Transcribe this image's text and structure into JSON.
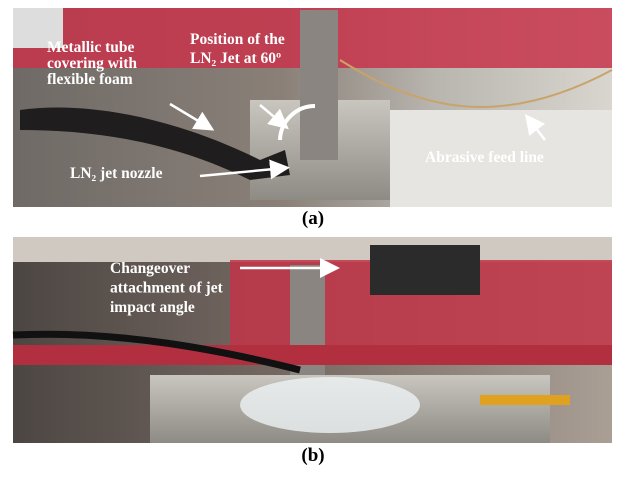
{
  "panels": [
    {
      "caption": "(a)",
      "annotations": [
        {
          "lines": [
            "Metallic tube",
            "covering with",
            "flexible foam"
          ]
        },
        {
          "lines": [
            "Position  of  the",
            "LN₂ Jet at 60º"
          ]
        },
        {
          "lines": [
            "LN₂ jet nozzle"
          ]
        },
        {
          "lines": [
            "Abrasive feed line"
          ]
        }
      ]
    },
    {
      "caption": "(b)",
      "annotations": [
        {
          "lines": [
            "Changeover",
            "attachment of jet",
            "impact angle"
          ]
        }
      ]
    }
  ]
}
